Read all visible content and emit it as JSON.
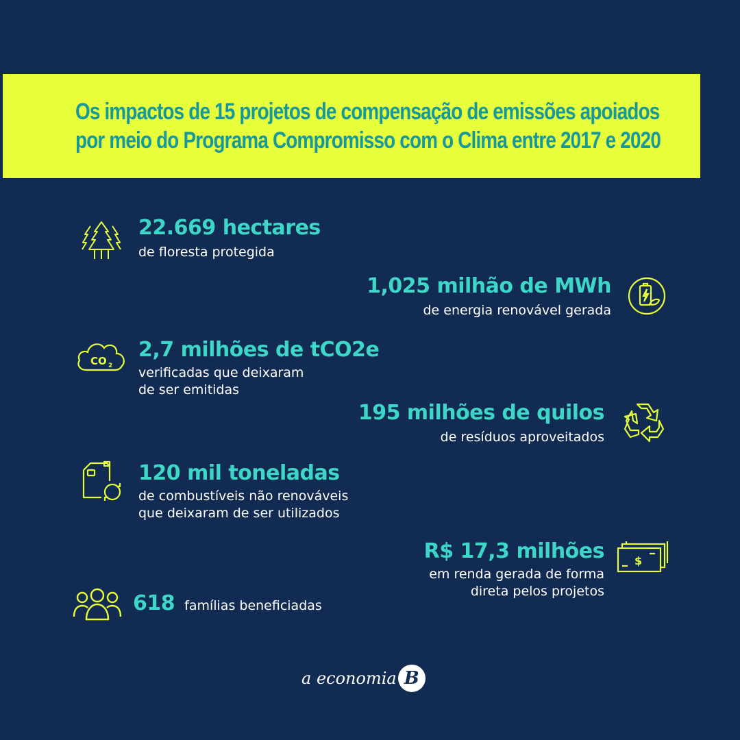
{
  "title": {
    "line1": "Os impactos de 15 projetos de compensação de emissões apoiados",
    "line2": "por meio do Programa Compromisso com o Clima entre 2017 e 2020"
  },
  "stats": {
    "forest": {
      "value": "22.669 hectares",
      "desc1": "de floresta protegida",
      "icon": "trees-icon"
    },
    "energy": {
      "value": "1,025 milhão de MWh",
      "desc1": "de energia renovável gerada",
      "icon": "battery-leaf-icon"
    },
    "co2": {
      "value": "2,7 milhões de tCO2e",
      "desc1": "verificadas que deixaram",
      "desc2": "de ser emitidas",
      "icon": "co2-cloud-icon"
    },
    "waste": {
      "value": "195 milhões de quilos",
      "desc1": "de resíduos aproveitados",
      "icon": "recycle-icon"
    },
    "fuel": {
      "value": "120 mil toneladas",
      "desc1": "de combustíveis não renováveis",
      "desc2": "que deixaram de ser utilizados",
      "icon": "fuel-can-icon"
    },
    "income": {
      "value": "R$ 17,3 milhões",
      "desc1": "em renda gerada de forma",
      "desc2": "direta pelos projetos",
      "icon": "money-icon"
    },
    "families": {
      "value": "618",
      "desc1": "famílias beneficiadas",
      "icon": "people-icon"
    }
  },
  "logo": {
    "text": "a economia",
    "badge": "B"
  },
  "colors": {
    "background": "#122b52",
    "band": "#e6ff3a",
    "title": "#17989a",
    "accent": "#3dd6c8",
    "icon": "#e6ff3a"
  }
}
